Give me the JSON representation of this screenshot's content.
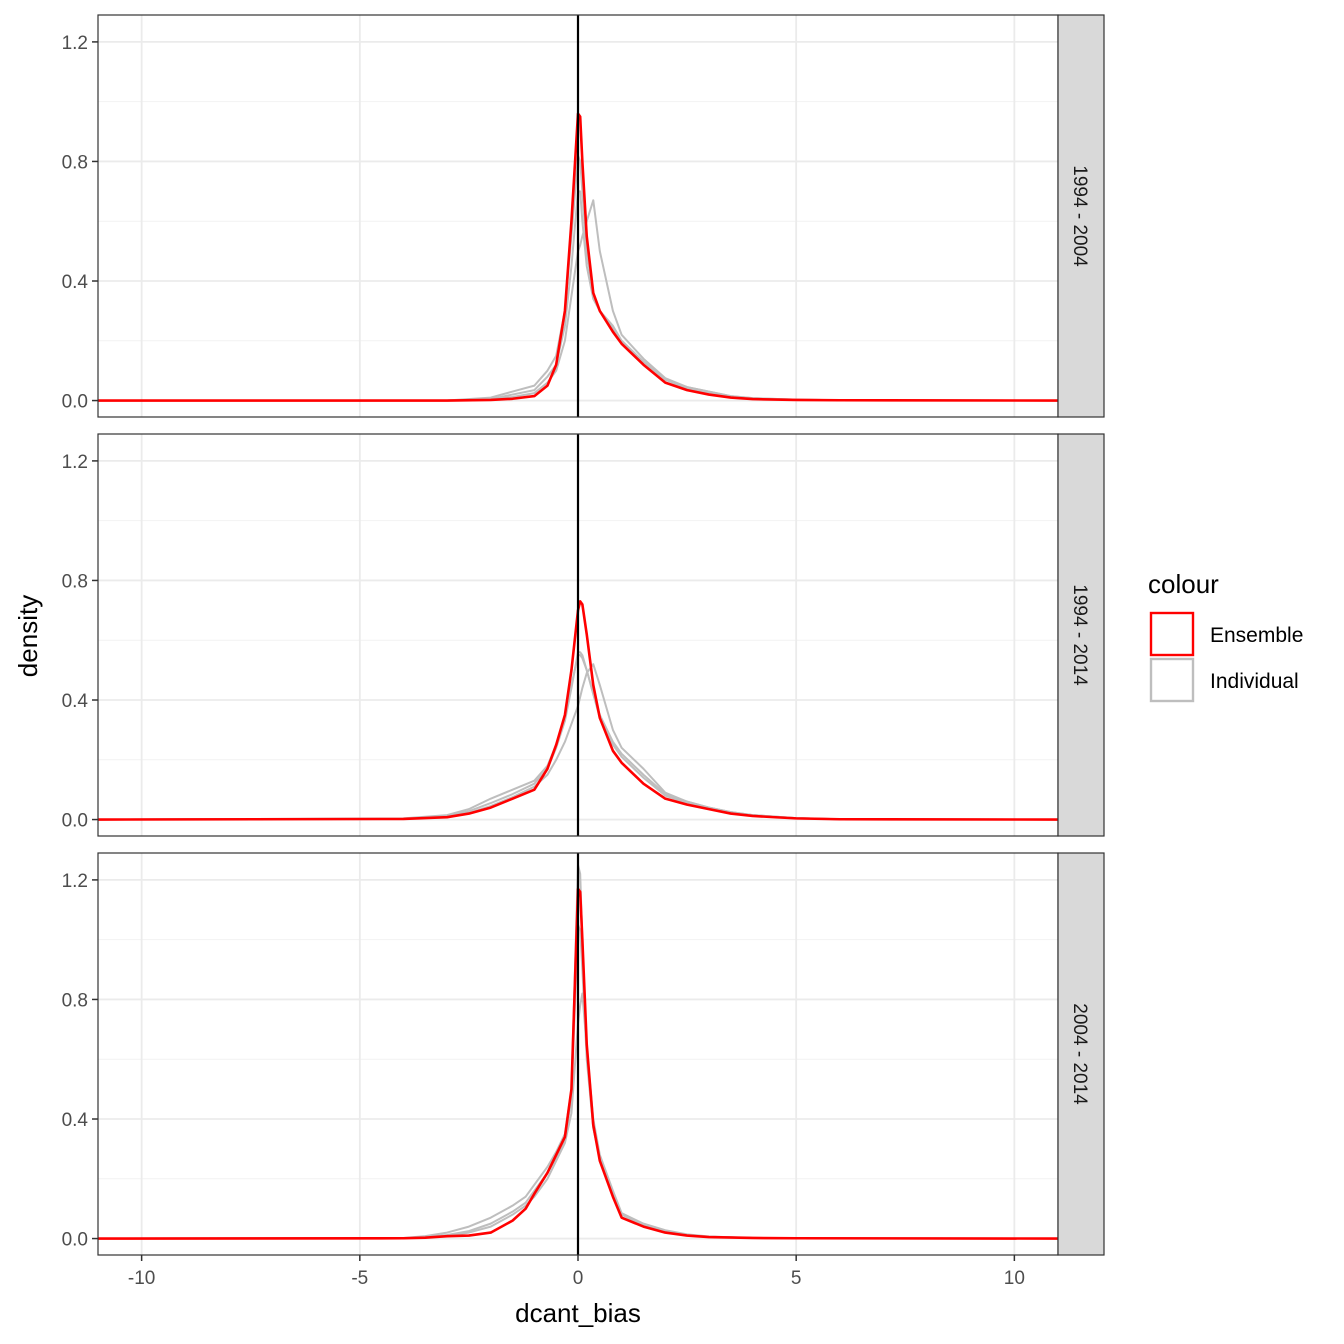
{
  "chart_data": {
    "type": "line",
    "xlabel": "dcant_bias",
    "ylabel": "density",
    "xlim": [
      -11,
      11
    ],
    "ylim": [
      -0.055,
      1.29
    ],
    "x_ticks": [
      -10,
      -5,
      0,
      5,
      10
    ],
    "x_tick_labels": [
      "-10",
      "-5",
      "0",
      "5",
      "10"
    ],
    "y_ticks": [
      0.0,
      0.4,
      0.8,
      1.2
    ],
    "y_tick_labels": [
      "0.0",
      "0.4",
      "0.8",
      "1.2"
    ],
    "vline": 0,
    "grid": true,
    "legend": {
      "title": "colour",
      "position": "right",
      "entries": [
        {
          "label": "Ensemble",
          "color": "#ff0000"
        },
        {
          "label": "Individual",
          "color": "#bebebe"
        }
      ]
    },
    "facets": [
      {
        "label": "1994 - 2004",
        "series": [
          {
            "name": "Ensemble",
            "color": "#ff0000",
            "x": [
              -11,
              -3,
              -2,
              -1.5,
              -1,
              -0.7,
              -0.5,
              -0.3,
              -0.15,
              0,
              0.05,
              0.1,
              0.2,
              0.35,
              0.5,
              0.8,
              1,
              1.5,
              2,
              2.5,
              3,
              3.5,
              4,
              5,
              6,
              11
            ],
            "y": [
              0,
              0,
              0.002,
              0.006,
              0.015,
              0.05,
              0.12,
              0.3,
              0.6,
              0.96,
              0.95,
              0.8,
              0.55,
              0.36,
              0.3,
              0.23,
              0.19,
              0.12,
              0.06,
              0.035,
              0.02,
              0.01,
              0.005,
              0.002,
              0.001,
              0
            ]
          },
          {
            "name": "Individual",
            "color": "#bebebe",
            "x": [
              -11,
              -3,
              -2,
              -1.5,
              -1,
              -0.7,
              -0.5,
              -0.3,
              -0.15,
              0,
              0.05,
              0.1,
              0.2,
              0.35,
              0.5,
              0.8,
              1,
              1.5,
              2,
              2.5,
              3,
              3.5,
              4,
              5,
              6,
              11
            ],
            "y": [
              0,
              0,
              0.01,
              0.03,
              0.05,
              0.1,
              0.15,
              0.3,
              0.55,
              0.82,
              0.8,
              0.7,
              0.5,
              0.35,
              0.3,
              0.25,
              0.2,
              0.13,
              0.07,
              0.045,
              0.03,
              0.015,
              0.008,
              0.003,
              0.001,
              0
            ]
          },
          {
            "name": "Individual",
            "color": "#bebebe",
            "x": [
              -11,
              -3,
              -2,
              -1.5,
              -1,
              -0.7,
              -0.5,
              -0.3,
              -0.15,
              0,
              0.05,
              0.1,
              0.2,
              0.35,
              0.5,
              0.8,
              1,
              1.5,
              2,
              2.5,
              3,
              3.5,
              4,
              5,
              6,
              11
            ],
            "y": [
              0,
              0,
              0.005,
              0.02,
              0.035,
              0.08,
              0.12,
              0.25,
              0.45,
              0.7,
              0.7,
              0.6,
              0.45,
              0.34,
              0.3,
              0.24,
              0.2,
              0.13,
              0.07,
              0.04,
              0.025,
              0.012,
              0.006,
              0.002,
              0.001,
              0
            ]
          },
          {
            "name": "Individual",
            "color": "#bebebe",
            "x": [
              -11,
              -3,
              -2,
              -1.5,
              -1,
              -0.7,
              -0.5,
              -0.3,
              -0.15,
              0,
              0.05,
              0.1,
              0.2,
              0.35,
              0.5,
              0.8,
              1,
              1.5,
              2,
              2.5,
              3,
              3.5,
              4,
              5,
              6,
              11
            ],
            "y": [
              0,
              0,
              0.004,
              0.012,
              0.025,
              0.06,
              0.1,
              0.2,
              0.35,
              0.5,
              0.52,
              0.55,
              0.6,
              0.67,
              0.5,
              0.3,
              0.22,
              0.14,
              0.075,
              0.045,
              0.03,
              0.015,
              0.008,
              0.003,
              0.001,
              0
            ]
          }
        ]
      },
      {
        "label": "1994 - 2014",
        "series": [
          {
            "name": "Ensemble",
            "color": "#ff0000",
            "x": [
              -11,
              -4,
              -3,
              -2.5,
              -2,
              -1.5,
              -1,
              -0.7,
              -0.5,
              -0.3,
              -0.15,
              0,
              0.05,
              0.1,
              0.2,
              0.35,
              0.5,
              0.8,
              1,
              1.5,
              2,
              2.5,
              3,
              3.5,
              4,
              5,
              6,
              11
            ],
            "y": [
              0,
              0.002,
              0.008,
              0.02,
              0.04,
              0.07,
              0.1,
              0.17,
              0.25,
              0.35,
              0.5,
              0.7,
              0.73,
              0.72,
              0.62,
              0.45,
              0.34,
              0.23,
              0.19,
              0.12,
              0.07,
              0.05,
              0.035,
              0.02,
              0.012,
              0.004,
              0.001,
              0
            ]
          },
          {
            "name": "Individual",
            "color": "#bebebe",
            "x": [
              -11,
              -4,
              -3,
              -2.5,
              -2,
              -1.5,
              -1,
              -0.7,
              -0.5,
              -0.3,
              -0.15,
              0,
              0.05,
              0.1,
              0.2,
              0.35,
              0.5,
              0.8,
              1,
              1.5,
              2,
              2.5,
              3,
              3.5,
              4,
              5,
              6,
              11
            ],
            "y": [
              0,
              0.004,
              0.015,
              0.035,
              0.07,
              0.1,
              0.13,
              0.18,
              0.25,
              0.34,
              0.45,
              0.55,
              0.55,
              0.54,
              0.5,
              0.42,
              0.34,
              0.25,
              0.21,
              0.14,
              0.08,
              0.055,
              0.04,
              0.025,
              0.015,
              0.005,
              0.001,
              0
            ]
          },
          {
            "name": "Individual",
            "color": "#bebebe",
            "x": [
              -11,
              -4,
              -3,
              -2.5,
              -2,
              -1.5,
              -1,
              -0.7,
              -0.5,
              -0.3,
              -0.15,
              0,
              0.05,
              0.1,
              0.2,
              0.35,
              0.5,
              0.8,
              1,
              1.5,
              2,
              2.5,
              3,
              3.5,
              4,
              5,
              6,
              11
            ],
            "y": [
              0,
              0.003,
              0.012,
              0.028,
              0.055,
              0.085,
              0.12,
              0.17,
              0.24,
              0.33,
              0.44,
              0.56,
              0.56,
              0.55,
              0.5,
              0.42,
              0.35,
              0.26,
              0.22,
              0.15,
              0.085,
              0.06,
              0.04,
              0.025,
              0.015,
              0.005,
              0.001,
              0
            ]
          },
          {
            "name": "Individual",
            "color": "#bebebe",
            "x": [
              -11,
              -4,
              -3,
              -2.5,
              -2,
              -1.5,
              -1,
              -0.7,
              -0.5,
              -0.3,
              -0.15,
              0,
              0.05,
              0.1,
              0.2,
              0.35,
              0.5,
              0.8,
              1,
              1.5,
              2,
              2.5,
              3,
              3.5,
              4,
              5,
              6,
              11
            ],
            "y": [
              0,
              0.003,
              0.01,
              0.022,
              0.045,
              0.075,
              0.11,
              0.15,
              0.2,
              0.26,
              0.32,
              0.38,
              0.41,
              0.44,
              0.49,
              0.52,
              0.45,
              0.3,
              0.24,
              0.17,
              0.09,
              0.06,
              0.04,
              0.025,
              0.015,
              0.005,
              0.001,
              0
            ]
          }
        ]
      },
      {
        "label": "2004 - 2014",
        "series": [
          {
            "name": "Ensemble",
            "color": "#ff0000",
            "x": [
              -11,
              -4,
              -3.5,
              -3,
              -2.5,
              -2,
              -1.5,
              -1.2,
              -1,
              -0.7,
              -0.5,
              -0.3,
              -0.15,
              0,
              0.05,
              0.1,
              0.2,
              0.35,
              0.5,
              0.8,
              1,
              1.5,
              2,
              2.5,
              3,
              4,
              5,
              11
            ],
            "y": [
              0,
              0.001,
              0.003,
              0.008,
              0.01,
              0.02,
              0.06,
              0.1,
              0.15,
              0.22,
              0.28,
              0.34,
              0.5,
              1.17,
              1.16,
              1.0,
              0.65,
              0.38,
              0.26,
              0.14,
              0.07,
              0.04,
              0.02,
              0.01,
              0.005,
              0.002,
              0.001,
              0
            ]
          },
          {
            "name": "Individual",
            "color": "#bebebe",
            "x": [
              -11,
              -4,
              -3.5,
              -3,
              -2.5,
              -2,
              -1.5,
              -1.2,
              -1,
              -0.7,
              -0.5,
              -0.3,
              -0.15,
              0,
              0.05,
              0.1,
              0.2,
              0.35,
              0.5,
              0.8,
              1,
              1.5,
              2,
              2.5,
              3,
              4,
              5,
              11
            ],
            "y": [
              0,
              0.002,
              0.008,
              0.02,
              0.04,
              0.07,
              0.11,
              0.14,
              0.18,
              0.24,
              0.29,
              0.35,
              0.5,
              1.25,
              1.22,
              1.0,
              0.62,
              0.37,
              0.27,
              0.15,
              0.08,
              0.045,
              0.025,
              0.012,
              0.006,
              0.002,
              0.001,
              0
            ]
          },
          {
            "name": "Individual",
            "color": "#bebebe",
            "x": [
              -11,
              -4,
              -3.5,
              -3,
              -2.5,
              -2,
              -1.5,
              -1.2,
              -1,
              -0.7,
              -0.5,
              -0.3,
              -0.15,
              0,
              0.05,
              0.1,
              0.2,
              0.35,
              0.5,
              0.8,
              1,
              1.5,
              2,
              2.5,
              3,
              4,
              5,
              11
            ],
            "y": [
              0,
              0.001,
              0.005,
              0.012,
              0.025,
              0.05,
              0.09,
              0.12,
              0.16,
              0.22,
              0.27,
              0.33,
              0.47,
              1.05,
              1.03,
              0.9,
              0.6,
              0.37,
              0.27,
              0.15,
              0.08,
              0.045,
              0.025,
              0.012,
              0.006,
              0.002,
              0.001,
              0
            ]
          },
          {
            "name": "Individual",
            "color": "#bebebe",
            "x": [
              -11,
              -4,
              -3.5,
              -3,
              -2.5,
              -2,
              -1.5,
              -1.2,
              -1,
              -0.7,
              -0.5,
              -0.3,
              -0.15,
              0,
              0.05,
              0.1,
              0.2,
              0.35,
              0.5,
              0.8,
              1,
              1.5,
              2,
              2.5,
              3,
              4,
              5,
              11
            ],
            "y": [
              0,
              0.001,
              0.004,
              0.01,
              0.02,
              0.04,
              0.08,
              0.11,
              0.14,
              0.2,
              0.26,
              0.32,
              0.42,
              0.72,
              0.78,
              0.82,
              0.64,
              0.4,
              0.28,
              0.16,
              0.085,
              0.05,
              0.028,
              0.014,
              0.007,
              0.002,
              0.001,
              0
            ]
          }
        ]
      }
    ]
  }
}
